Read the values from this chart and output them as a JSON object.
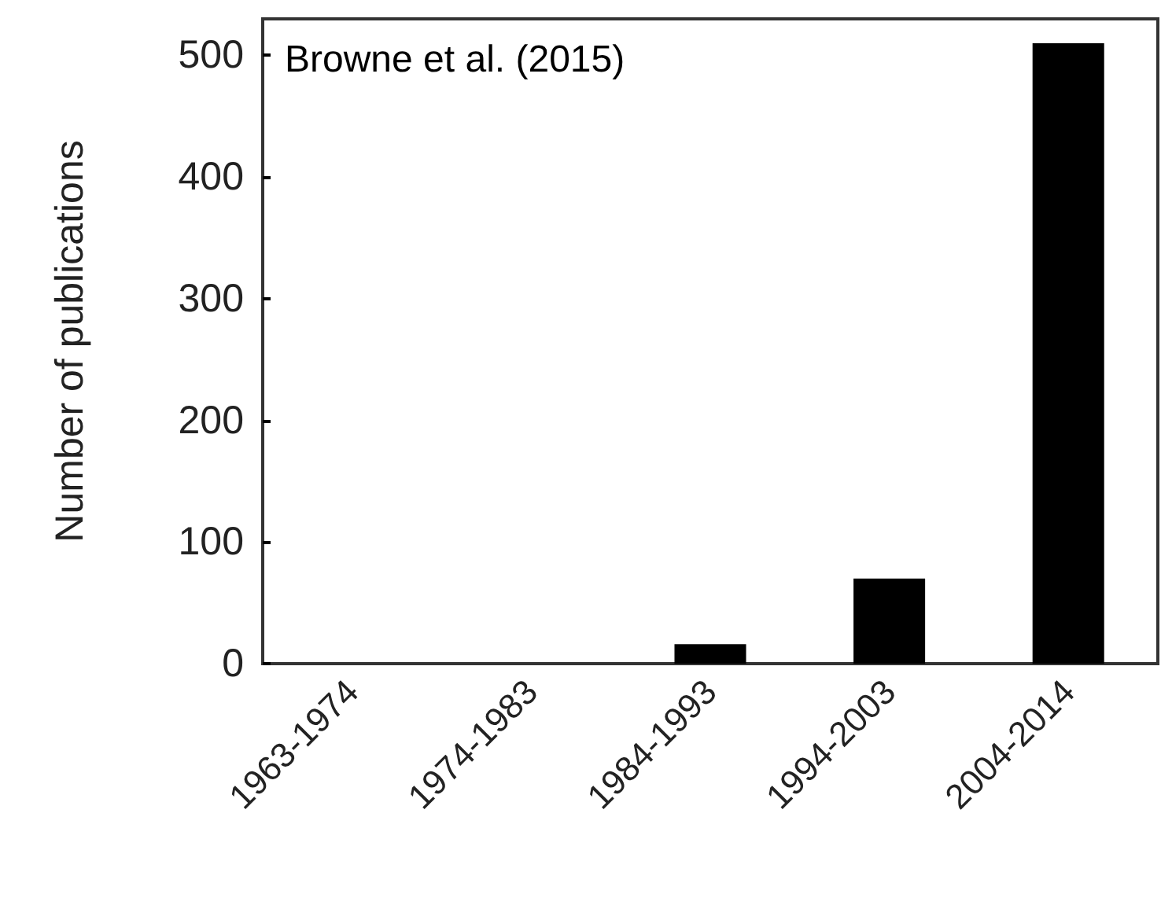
{
  "chart_data": {
    "type": "bar",
    "ylabel": "Number of publications",
    "categories": [
      "1963-1974",
      "1974-1983",
      "1984-1993",
      "1994-2003",
      "2004-2014"
    ],
    "values": [
      0,
      0,
      16,
      70,
      510
    ],
    "color": "#000000",
    "ylim": [
      0,
      530
    ],
    "yticks": [
      0,
      100,
      200,
      300,
      400,
      500
    ],
    "grid": false,
    "annotations": [
      "Browne et al. (2015)"
    ]
  }
}
